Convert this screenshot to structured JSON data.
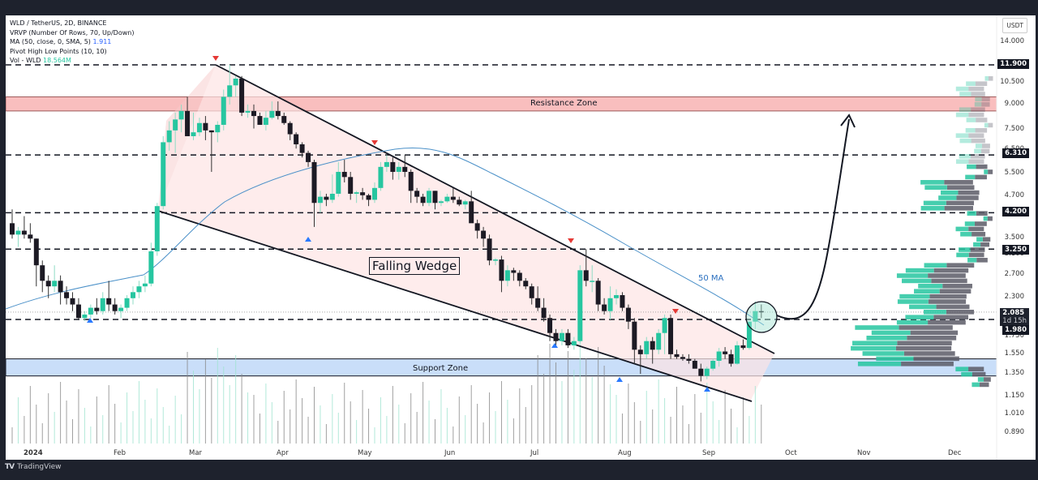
{
  "legend": {
    "symbol": "WLD / TetherUS, 2D, BINANCE",
    "vrvp": "VRVP (Number Of Rows, 70, Up/Down)",
    "ma": "MA (50, close, 0, SMA, 5)",
    "ma_value": "1.911",
    "pivot": "Pivot High Low Points (10, 10)",
    "vol": "Vol - WLD",
    "vol_value": "18.564M"
  },
  "price_axis": {
    "currency": "USDT",
    "ticks": [
      "14.000",
      "10.500",
      "9.000",
      "7.500",
      "6.500",
      "5.500",
      "4.700",
      "3.500",
      "3.100",
      "2.700",
      "2.300",
      "1.750",
      "1.550",
      "1.350",
      "1.150",
      "1.010",
      "0.890"
    ],
    "tags": [
      {
        "label": "11.900"
      },
      {
        "label": "6.310"
      },
      {
        "label": "4.200"
      },
      {
        "label": "3.250"
      },
      {
        "label": "2.085",
        "sub": "1d 15h"
      },
      {
        "label": "1.980"
      }
    ]
  },
  "time_axis": {
    "months": [
      "2024",
      "Feb",
      "Mar",
      "Apr",
      "May",
      "Jun",
      "Jul",
      "Aug",
      "Sep",
      "Oct",
      "Nov",
      "Dec"
    ]
  },
  "annotations": {
    "pattern": "Falling Wedge",
    "resistance": "Resistance Zone",
    "support": "Support Zone",
    "ma_label": "50 MA"
  },
  "footer": {
    "logo": "TV",
    "brand": "TradingView"
  },
  "colors": {
    "up": "#26c6a0",
    "down": "#1c1a24",
    "ma": "#4a90c8",
    "resistance": "#f7a8a8",
    "support": "#bcd6f7",
    "wedge": "#fde4e4",
    "pivot_high": "#e53935",
    "pivot_low": "#2979ff"
  },
  "chart_data": {
    "type": "candlestick",
    "title": "WLD / TetherUS, 2D, BINANCE",
    "xlabel": "",
    "ylabel": "USDT",
    "y_scale": "log",
    "ylim": [
      0.85,
      15
    ],
    "x_ticks": [
      "2024",
      "Feb",
      "Mar",
      "Apr",
      "May",
      "Jun",
      "Jul",
      "Aug",
      "Sep",
      "Oct",
      "Nov",
      "Dec"
    ],
    "horizontal_levels": [
      11.9,
      6.31,
      4.2,
      3.25,
      1.98
    ],
    "current_price": 2.085,
    "zones": [
      {
        "name": "Resistance Zone",
        "low": 8.6,
        "high": 9.5
      },
      {
        "name": "Support Zone",
        "low": 1.33,
        "high": 1.5
      }
    ],
    "indicator_ma50_last": 1.911,
    "volume_last": "18.564M",
    "candles": [
      [
        3.9,
        4.3,
        3.5,
        3.6
      ],
      [
        3.6,
        3.8,
        3.3,
        3.7
      ],
      [
        3.7,
        4.1,
        3.5,
        3.6
      ],
      [
        3.6,
        3.9,
        3.4,
        3.5
      ],
      [
        3.5,
        3.5,
        2.5,
        2.9
      ],
      [
        2.9,
        3.0,
        2.4,
        2.6
      ],
      [
        2.6,
        2.7,
        2.3,
        2.5
      ],
      [
        2.5,
        2.9,
        2.4,
        2.6
      ],
      [
        2.6,
        2.7,
        2.2,
        2.4
      ],
      [
        2.4,
        2.5,
        2.2,
        2.3
      ],
      [
        2.3,
        2.4,
        2.1,
        2.2
      ],
      [
        2.2,
        2.3,
        1.98,
        2.0
      ],
      [
        2.0,
        2.1,
        1.96,
        2.05
      ],
      [
        2.05,
        2.2,
        2.0,
        2.15
      ],
      [
        2.15,
        2.3,
        2.05,
        2.1
      ],
      [
        2.1,
        2.4,
        2.05,
        2.3
      ],
      [
        2.3,
        2.6,
        2.1,
        2.2
      ],
      [
        2.2,
        2.3,
        2.05,
        2.1
      ],
      [
        2.1,
        2.2,
        2.0,
        2.15
      ],
      [
        2.15,
        2.35,
        2.1,
        2.3
      ],
      [
        2.3,
        2.5,
        2.2,
        2.4
      ],
      [
        2.4,
        2.6,
        2.3,
        2.5
      ],
      [
        2.5,
        2.7,
        2.4,
        2.55
      ],
      [
        2.55,
        3.4,
        2.5,
        3.2
      ],
      [
        3.2,
        4.5,
        3.1,
        4.4
      ],
      [
        4.4,
        7.2,
        4.3,
        6.9
      ],
      [
        6.9,
        8.0,
        6.5,
        7.5
      ],
      [
        7.5,
        8.5,
        6.4,
        8.1
      ],
      [
        8.1,
        9.0,
        7.4,
        8.6
      ],
      [
        8.6,
        9.5,
        8.0,
        7.2
      ],
      [
        7.2,
        8.5,
        7.0,
        7.4
      ],
      [
        7.4,
        8.2,
        7.2,
        7.9
      ],
      [
        7.9,
        8.3,
        7.0,
        7.5
      ],
      [
        7.5,
        7.5,
        5.6,
        7.4
      ],
      [
        7.4,
        8.0,
        6.9,
        7.8
      ],
      [
        7.8,
        10.0,
        7.5,
        9.5
      ],
      [
        9.5,
        11.9,
        9.0,
        10.3
      ],
      [
        10.3,
        11.0,
        9.5,
        10.8
      ],
      [
        10.8,
        11.0,
        8.3,
        8.5
      ],
      [
        8.5,
        9.0,
        8.2,
        8.6
      ],
      [
        8.6,
        9.0,
        7.6,
        8.3
      ],
      [
        8.3,
        8.5,
        7.8,
        7.8
      ],
      [
        7.8,
        8.6,
        7.5,
        8.2
      ],
      [
        8.2,
        9.2,
        8.1,
        8.6
      ],
      [
        8.6,
        9.2,
        8.1,
        8.3
      ],
      [
        8.3,
        8.5,
        7.8,
        7.9
      ],
      [
        7.9,
        8.0,
        7.0,
        7.3
      ],
      [
        7.3,
        7.4,
        6.6,
        6.8
      ],
      [
        6.8,
        6.9,
        6.2,
        6.4
      ],
      [
        6.4,
        6.5,
        5.8,
        6.0
      ],
      [
        6.0,
        6.1,
        3.8,
        4.5
      ],
      [
        4.5,
        4.9,
        4.2,
        4.7
      ],
      [
        4.7,
        4.8,
        4.4,
        4.6
      ],
      [
        4.6,
        5.5,
        4.5,
        4.8
      ],
      [
        4.8,
        6.0,
        4.7,
        5.6
      ],
      [
        5.6,
        6.1,
        5.2,
        5.4
      ],
      [
        5.4,
        5.6,
        4.6,
        4.8
      ],
      [
        4.8,
        4.9,
        4.5,
        4.85
      ],
      [
        4.85,
        5.0,
        4.6,
        4.75
      ],
      [
        4.75,
        4.8,
        4.4,
        4.6
      ],
      [
        4.6,
        5.2,
        4.5,
        5.0
      ],
      [
        5.0,
        6.0,
        4.9,
        5.8
      ],
      [
        5.8,
        6.3,
        5.6,
        6.0
      ],
      [
        6.0,
        6.2,
        5.3,
        5.6
      ],
      [
        5.6,
        6.0,
        5.3,
        5.8
      ],
      [
        5.8,
        6.3,
        5.4,
        5.6
      ],
      [
        5.6,
        5.7,
        4.5,
        4.9
      ],
      [
        4.9,
        5.0,
        4.5,
        4.7
      ],
      [
        4.7,
        4.8,
        4.4,
        4.5
      ],
      [
        4.5,
        5.0,
        4.4,
        4.9
      ],
      [
        4.9,
        4.9,
        4.3,
        4.5
      ],
      [
        4.5,
        4.6,
        4.4,
        4.55
      ],
      [
        4.55,
        4.8,
        4.5,
        4.7
      ],
      [
        4.7,
        5.0,
        4.5,
        4.6
      ],
      [
        4.6,
        4.7,
        4.4,
        4.45
      ],
      [
        4.45,
        4.6,
        4.3,
        4.55
      ],
      [
        4.55,
        4.9,
        4.3,
        3.9
      ],
      [
        3.9,
        4.0,
        3.5,
        3.7
      ],
      [
        3.7,
        3.8,
        3.3,
        3.5
      ],
      [
        3.5,
        3.6,
        2.9,
        3.0
      ],
      [
        3.0,
        3.05,
        2.9,
        3.02
      ],
      [
        3.02,
        3.1,
        2.4,
        2.6
      ],
      [
        2.6,
        2.9,
        2.5,
        2.8
      ],
      [
        2.8,
        2.85,
        2.6,
        2.75
      ],
      [
        2.75,
        2.8,
        2.5,
        2.6
      ],
      [
        2.6,
        2.65,
        2.45,
        2.5
      ],
      [
        2.5,
        2.55,
        2.2,
        2.3
      ],
      [
        2.3,
        2.5,
        2.1,
        2.15
      ],
      [
        2.15,
        2.3,
        1.95,
        2.0
      ],
      [
        2.0,
        2.05,
        1.7,
        1.8
      ],
      [
        1.8,
        1.85,
        1.65,
        1.7
      ],
      [
        1.7,
        1.85,
        1.65,
        1.8
      ],
      [
        1.8,
        1.85,
        1.62,
        1.65
      ],
      [
        1.65,
        1.75,
        1.6,
        1.7
      ],
      [
        1.7,
        2.9,
        1.68,
        2.8
      ],
      [
        2.8,
        3.25,
        2.5,
        2.6
      ],
      [
        2.6,
        2.9,
        2.4,
        2.6
      ],
      [
        2.6,
        2.65,
        2.1,
        2.2
      ],
      [
        2.2,
        2.3,
        2.05,
        2.1
      ],
      [
        2.1,
        2.5,
        1.98,
        2.3
      ],
      [
        2.3,
        2.45,
        2.2,
        2.35
      ],
      [
        2.35,
        2.4,
        2.1,
        2.15
      ],
      [
        2.15,
        2.2,
        1.85,
        1.95
      ],
      [
        1.95,
        2.0,
        1.45,
        1.6
      ],
      [
        1.6,
        1.65,
        1.35,
        1.55
      ],
      [
        1.55,
        1.75,
        1.5,
        1.7
      ],
      [
        1.7,
        1.75,
        1.45,
        1.6
      ],
      [
        1.6,
        1.85,
        1.55,
        1.8
      ],
      [
        1.8,
        2.05,
        1.55,
        2.0
      ],
      [
        2.0,
        2.05,
        1.5,
        1.55
      ],
      [
        1.55,
        1.6,
        1.5,
        1.52
      ],
      [
        1.52,
        1.55,
        1.48,
        1.5
      ],
      [
        1.5,
        1.55,
        1.45,
        1.48
      ],
      [
        1.48,
        1.5,
        1.42,
        1.4
      ],
      [
        1.4,
        1.45,
        1.28,
        1.33
      ],
      [
        1.33,
        1.42,
        1.3,
        1.4
      ],
      [
        1.4,
        1.5,
        1.38,
        1.48
      ],
      [
        1.48,
        1.62,
        1.42,
        1.58
      ],
      [
        1.58,
        1.63,
        1.5,
        1.55
      ],
      [
        1.55,
        1.6,
        1.42,
        1.45
      ],
      [
        1.45,
        1.7,
        1.44,
        1.65
      ],
      [
        1.65,
        1.72,
        1.6,
        1.62
      ],
      [
        1.62,
        1.85,
        1.6,
        1.95
      ],
      [
        1.95,
        2.25,
        1.85,
        2.1
      ],
      [
        2.1,
        2.2,
        2.0,
        2.085
      ]
    ]
  }
}
